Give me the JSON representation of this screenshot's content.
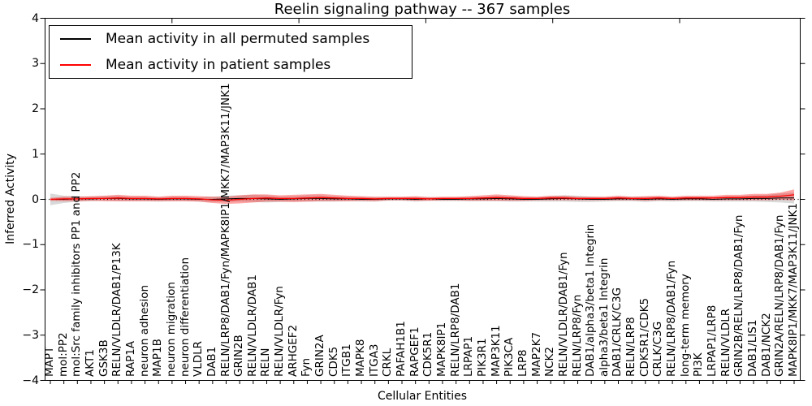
{
  "title": "Reelin signaling pathway -- 367 samples",
  "axes": {
    "xlabel": "Cellular Entities",
    "ylabel": "Inferred Activity",
    "y_ticks": [
      "4",
      "3",
      "2",
      "1",
      "0",
      "−1",
      "−2",
      "−3",
      "−4"
    ]
  },
  "legend": {
    "items": [
      {
        "label": "Mean activity in all permuted samples",
        "color": "#000000"
      },
      {
        "label": "Mean activity in patient samples",
        "color": "#ff0000"
      }
    ]
  },
  "chart_data": {
    "type": "line",
    "title": "Reelin signaling pathway -- 367 samples",
    "xlabel": "Cellular Entities",
    "ylabel": "Inferred Activity",
    "ylim": [
      -4,
      4
    ],
    "grid": false,
    "legend_position": "upper left",
    "zero_line": {
      "style": "dotted",
      "color": "#000000",
      "y": 0
    },
    "top_axis_ticks": [
      10,
      20,
      30,
      40,
      50
    ],
    "top_axis_max": 59.5,
    "categories": [
      "MAPT",
      "mol:PP2",
      "mol:Src family inhibitors PP1 and PP2",
      "AKT1",
      "GSK3B",
      "RELN/VLDLR/DAB1/P13K",
      "RAP1A",
      "neuron adhesion",
      "MAP1B",
      "neuron migration",
      "neuron differentiation",
      "VLDLR",
      "DAB1",
      "RELN/LRP8/DAB1/Fyn/MAPK8IP1/MKK7/MAP3K11/JNK1",
      "GRIN2B",
      "RELN/VLDLR/DAB1",
      "RELN",
      "RELN/VLDLR/Fyn",
      "ARHGEF2",
      "Fyn",
      "GRIN2A",
      "CDK5",
      "ITGB1",
      "MAPK8",
      "ITGA3",
      "CRKL",
      "PAFAH1B1",
      "RAPGEF1",
      "CDK5R1",
      "MAPK8IP1",
      "RELN/LRP8/DAB1",
      "LRPAP1",
      "PIK3R1",
      "MAP3K11",
      "PIK3CA",
      "LRP8",
      "MAP2K7",
      "NCK2",
      "RELN/VLDLR/DAB1/Fyn",
      "RELN/LRP8/Fyn",
      "DAB1/alpha3/beta1 Integrin",
      "alpha3/beta1 Integrin",
      "DAB1/CRLK/C3G",
      "RELN/LRP8",
      "CDK5R1/CDK5",
      "CRLK/C3G",
      "RELN/LRP8/DAB1/Fyn",
      "long-term memory",
      "PI3K",
      "LRPAP1/LRP8",
      "RELN/VLDLR",
      "GRIN2B/RELN/LRP8/DAB1/Fyn",
      "DAB1/LIS1",
      "DAB1/NCK2",
      "GRIN2A/RELN/LRP8/DAB1/Fyn",
      "MAPK8IP1/MKK7/MAP3K11/JNK1"
    ],
    "series": [
      {
        "name": "Mean activity in all permuted samples",
        "color": "#000000",
        "band_color": "#000000",
        "band_opacity": 0.15,
        "values": [
          0.0,
          0.0,
          0.01,
          0.01,
          0.02,
          0.02,
          0.01,
          0.01,
          0.0,
          0.01,
          0.01,
          0.0,
          0.0,
          0.01,
          0.02,
          0.02,
          0.01,
          0.0,
          0.01,
          0.02,
          0.02,
          0.01,
          0.01,
          0.0,
          0.0,
          0.01,
          0.01,
          0.0,
          0.01,
          0.0,
          0.0,
          0.01,
          0.01,
          0.02,
          0.01,
          0.0,
          0.0,
          0.01,
          0.02,
          0.01,
          0.0,
          0.0,
          0.01,
          0.01,
          0.0,
          0.01,
          0.0,
          0.01,
          0.01,
          0.0,
          0.01,
          0.01,
          0.02,
          0.02,
          0.03,
          0.03
        ],
        "band_halfwidth": [
          0.13,
          0.08,
          0.06,
          0.05,
          0.05,
          0.06,
          0.05,
          0.05,
          0.05,
          0.05,
          0.05,
          0.05,
          0.06,
          0.07,
          0.07,
          0.08,
          0.08,
          0.06,
          0.06,
          0.07,
          0.07,
          0.06,
          0.05,
          0.05,
          0.05,
          0.04,
          0.04,
          0.05,
          0.04,
          0.04,
          0.04,
          0.05,
          0.05,
          0.06,
          0.06,
          0.05,
          0.05,
          0.06,
          0.07,
          0.07,
          0.06,
          0.05,
          0.05,
          0.05,
          0.06,
          0.05,
          0.05,
          0.05,
          0.05,
          0.05,
          0.06,
          0.06,
          0.07,
          0.08,
          0.1,
          0.12
        ]
      },
      {
        "name": "Mean activity in patient samples",
        "color": "#ff0000",
        "band_color": "#ff0000",
        "band_opacity": 0.35,
        "values": [
          0.0,
          0.01,
          0.01,
          0.02,
          0.02,
          0.03,
          0.02,
          0.02,
          0.01,
          0.02,
          0.02,
          0.01,
          -0.01,
          -0.02,
          0.0,
          0.02,
          0.03,
          0.02,
          0.02,
          0.03,
          0.04,
          0.03,
          0.02,
          0.02,
          0.01,
          0.02,
          0.02,
          0.02,
          0.01,
          0.02,
          0.02,
          0.02,
          0.03,
          0.04,
          0.03,
          0.02,
          0.02,
          0.03,
          0.03,
          0.02,
          0.02,
          0.02,
          0.03,
          0.02,
          0.02,
          0.03,
          0.02,
          0.03,
          0.03,
          0.03,
          0.04,
          0.04,
          0.05,
          0.05,
          0.07,
          0.1
        ],
        "band_halfwidth": [
          0.03,
          0.05,
          0.05,
          0.05,
          0.06,
          0.07,
          0.06,
          0.06,
          0.05,
          0.06,
          0.06,
          0.06,
          0.07,
          0.08,
          0.09,
          0.09,
          0.08,
          0.07,
          0.08,
          0.08,
          0.08,
          0.07,
          0.06,
          0.05,
          0.05,
          0.04,
          0.04,
          0.05,
          0.04,
          0.04,
          0.04,
          0.05,
          0.06,
          0.07,
          0.06,
          0.05,
          0.04,
          0.05,
          0.05,
          0.04,
          0.04,
          0.04,
          0.05,
          0.04,
          0.05,
          0.05,
          0.04,
          0.05,
          0.05,
          0.05,
          0.06,
          0.06,
          0.07,
          0.07,
          0.08,
          0.12
        ]
      }
    ]
  }
}
